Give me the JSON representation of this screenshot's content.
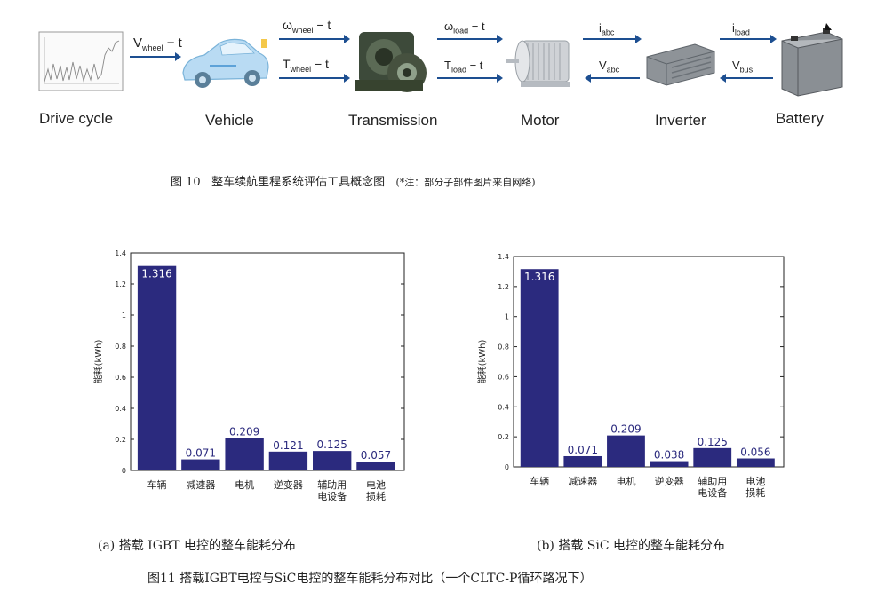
{
  "pipeline": {
    "stages": [
      "Drive cycle",
      "Vehicle",
      "Transmission",
      "Motor",
      "Inverter",
      "Battery"
    ],
    "arrows": {
      "a1": {
        "main": "V",
        "sub": "wheel",
        "tail": " − t"
      },
      "a2": {
        "main": "ω",
        "sub": "wheel",
        "tail": " − t"
      },
      "a3": {
        "main": "T",
        "sub": "wheel",
        "tail": " − t"
      },
      "a4": {
        "main": "ω",
        "sub": "load",
        "tail": " − t"
      },
      "a5": {
        "main": "T",
        "sub": "load",
        "tail": " − t"
      },
      "a6": {
        "main": "i",
        "sub": "abc",
        "tail": ""
      },
      "a7": {
        "main": "V",
        "sub": "abc",
        "tail": ""
      },
      "a8": {
        "main": "i",
        "sub": "load",
        "tail": ""
      },
      "a9": {
        "main": "V",
        "sub": "bus",
        "tail": ""
      }
    },
    "icons": [
      "drive-cycle-plot-icon",
      "vehicle-icon",
      "transmission-gearbox-icon",
      "motor-icon",
      "inverter-icon",
      "battery-icon"
    ]
  },
  "fig10": {
    "label": "图 10",
    "title": "整车续航里程系统评估工具概念图",
    "note": "(*注：部分子部件图片来自网络)"
  },
  "chart_data": [
    {
      "type": "bar",
      "categories": [
        "车辆",
        "减速器",
        "电机",
        "逆变器",
        "辅助用电设备",
        "电池损耗"
      ],
      "category_lines": [
        [
          "车辆"
        ],
        [
          "减速器"
        ],
        [
          "电机"
        ],
        [
          "逆变器"
        ],
        [
          "辅助用",
          "电设备"
        ],
        [
          "电池",
          "损耗"
        ]
      ],
      "values": [
        1.316,
        0.071,
        0.209,
        0.121,
        0.125,
        0.057
      ],
      "value_labels": [
        "1.316",
        "0.071",
        "0.209",
        "0.121",
        "0.125",
        "0.057"
      ],
      "ylabel": "能耗(kWh)",
      "ylim": [
        0,
        1.4
      ],
      "yticks": [
        "0",
        "0.2",
        "0.4",
        "0.6",
        "0.8",
        "1",
        "1.2",
        "1.4"
      ],
      "bar_color": "#2b2a7e",
      "caption": "(a)  搭载 IGBT 电控的整车能耗分布"
    },
    {
      "type": "bar",
      "categories": [
        "车辆",
        "减速器",
        "电机",
        "逆变器",
        "辅助用电设备",
        "电池损耗"
      ],
      "category_lines": [
        [
          "车辆"
        ],
        [
          "减速器"
        ],
        [
          "电机"
        ],
        [
          "逆变器"
        ],
        [
          "辅助用",
          "电设备"
        ],
        [
          "电池",
          "损耗"
        ]
      ],
      "values": [
        1.316,
        0.071,
        0.209,
        0.038,
        0.125,
        0.056
      ],
      "value_labels": [
        "1.316",
        "0.071",
        "0.209",
        "0.038",
        "0.125",
        "0.056"
      ],
      "ylabel": "能耗(kWh)",
      "ylim": [
        0,
        1.4
      ],
      "yticks": [
        "0",
        "0.2",
        "0.4",
        "0.6",
        "0.8",
        "1",
        "1.2",
        "1.4"
      ],
      "bar_color": "#2b2a7e",
      "caption": "(b)  搭载 SiC 电控的整车能耗分布"
    }
  ],
  "fig11": {
    "caption": "图11   搭载IGBT电控与SiC电控的整车能耗分布对比（一个CLTC-P循环路况下）"
  }
}
